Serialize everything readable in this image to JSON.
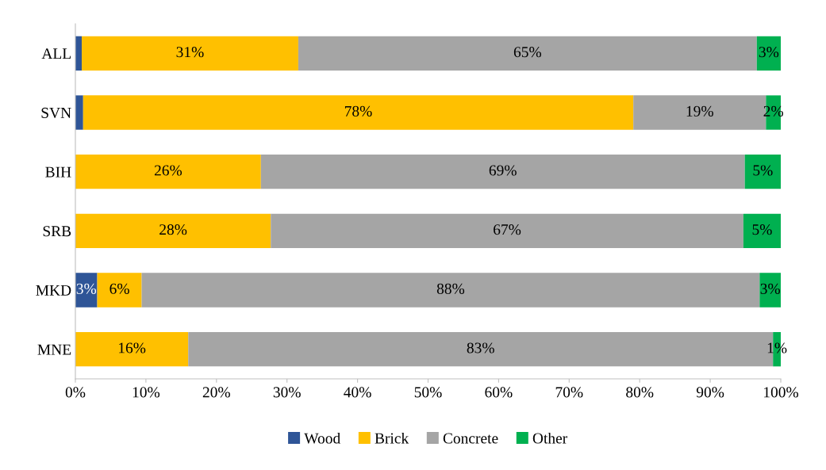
{
  "chart_data": {
    "type": "bar",
    "orientation": "horizontal",
    "stacked": true,
    "categories": [
      "ALL",
      "SVN",
      "BIH",
      "SRB",
      "MKD",
      "MNE"
    ],
    "xlim": [
      0,
      100
    ],
    "xticks": [
      {
        "value": 0,
        "label": "0%"
      },
      {
        "value": 10,
        "label": "10%"
      },
      {
        "value": 20,
        "label": "20%"
      },
      {
        "value": 30,
        "label": "30%"
      },
      {
        "value": 40,
        "label": "40%"
      },
      {
        "value": 50,
        "label": "50%"
      },
      {
        "value": 60,
        "label": "60%"
      },
      {
        "value": 70,
        "label": "70%"
      },
      {
        "value": 80,
        "label": "80%"
      },
      {
        "value": 90,
        "label": "90%"
      },
      {
        "value": 100,
        "label": "100%"
      }
    ],
    "series": [
      {
        "name": "Wood",
        "color": "#2f5597",
        "values": [
          0.9,
          1.1,
          0,
          0,
          3.1,
          0
        ],
        "value_labels": [
          null,
          null,
          null,
          null,
          "3%",
          null
        ]
      },
      {
        "name": "Brick",
        "color": "#ffc000",
        "values": [
          30.7,
          78.0,
          26.3,
          27.7,
          6.3,
          16.0
        ],
        "value_labels": [
          "31%",
          "78%",
          "26%",
          "28%",
          "6%",
          "16%"
        ]
      },
      {
        "name": "Concrete",
        "color": "#a5a5a5",
        "values": [
          65.0,
          18.8,
          68.6,
          67.0,
          87.6,
          82.9
        ],
        "value_labels": [
          "65%",
          "19%",
          "69%",
          "67%",
          "88%",
          "83%"
        ]
      },
      {
        "name": "Other",
        "color": "#00b050",
        "values": [
          3.4,
          2.1,
          5.1,
          5.3,
          3.0,
          1.1
        ],
        "value_labels": [
          "3%",
          "2%",
          "5%",
          "5%",
          "3%",
          "1%"
        ]
      }
    ],
    "grid": false,
    "legend": "bottom"
  }
}
